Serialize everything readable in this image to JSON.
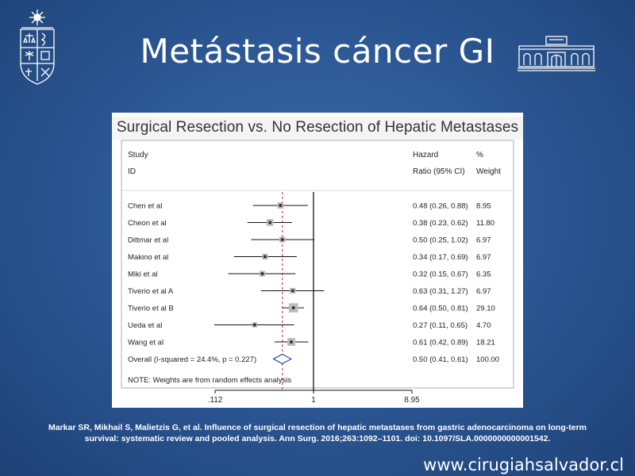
{
  "slide": {
    "title": "Metástasis cáncer GI",
    "citation_line1": "Markar SR, Mikhail S, Malietzis G, et al. Influence of surgical resection of hepatic metastases from gastric adenocarcinoma on long-term",
    "citation_line2": "survival: systematic review and pooled analysis. Ann Surg. 2016;263:1092–1101.   doi: 10.1097/SLA.0000000000001542.",
    "website": "www.cirugiahsalvador.cl"
  },
  "colors": {
    "background": "#2d5996",
    "text": "#ffffff",
    "marker": "#333333",
    "null_line": "#000000",
    "overall_line": "#cc2222",
    "diamond": "#1a3a8a"
  },
  "chart_data": {
    "type": "forest",
    "title": "Surgical Resection vs. No Resection of Hepatic Metastases",
    "header": {
      "study_line1": "Study",
      "study_line2": "ID",
      "hr_line1": "Hazard",
      "hr_line2": "Ratio (95% CI)",
      "w_line1": "%",
      "w_line2": "Weight"
    },
    "scale": "log",
    "x_ticks": [
      {
        "value": 0.112,
        "label": ".112"
      },
      {
        "value": 1,
        "label": "1"
      },
      {
        "value": 8.95,
        "label": "8.95"
      }
    ],
    "null_value": 1,
    "studies": [
      {
        "name": "Chen et al",
        "hr": 0.48,
        "lo": 0.26,
        "hi": 0.88,
        "weight": 8.95,
        "hr_text": "0.48 (0.26, 0.88)",
        "weight_text": "8.95"
      },
      {
        "name": "Cheon et al",
        "hr": 0.38,
        "lo": 0.23,
        "hi": 0.62,
        "weight": 11.8,
        "hr_text": "0.38 (0.23, 0.62)",
        "weight_text": "11.80"
      },
      {
        "name": "Dittmar et al",
        "hr": 0.5,
        "lo": 0.25,
        "hi": 1.02,
        "weight": 6.97,
        "hr_text": "0.50 (0.25, 1.02)",
        "weight_text": "6.97"
      },
      {
        "name": "Makino et al",
        "hr": 0.34,
        "lo": 0.17,
        "hi": 0.69,
        "weight": 6.97,
        "hr_text": "0.34 (0.17, 0.69)",
        "weight_text": "6.97"
      },
      {
        "name": "Miki et al",
        "hr": 0.32,
        "lo": 0.15,
        "hi": 0.67,
        "weight": 6.35,
        "hr_text": "0.32 (0.15, 0.67)",
        "weight_text": "6.35"
      },
      {
        "name": "Tiverio et al A",
        "hr": 0.63,
        "lo": 0.31,
        "hi": 1.27,
        "weight": 6.97,
        "hr_text": "0.63 (0.31, 1.27)",
        "weight_text": "6.97"
      },
      {
        "name": "Tiverio et al B",
        "hr": 0.64,
        "lo": 0.5,
        "hi": 0.81,
        "weight": 29.1,
        "hr_text": "0.64 (0.50, 0.81)",
        "weight_text": "29.10"
      },
      {
        "name": "Ueda et al",
        "hr": 0.27,
        "lo": 0.11,
        "hi": 0.65,
        "weight": 4.7,
        "hr_text": "0.27 (0.11, 0.65)",
        "weight_text": "4.70"
      },
      {
        "name": "Wang et al",
        "hr": 0.61,
        "lo": 0.42,
        "hi": 0.89,
        "weight": 18.21,
        "hr_text": "0.61 (0.42, 0.89)",
        "weight_text": "18.21"
      }
    ],
    "overall": {
      "name": "Overall  (I-squared = 24.4%, p = 0.227)",
      "hr": 0.5,
      "lo": 0.41,
      "hi": 0.61,
      "hr_text": "0.50 (0.41, 0.61)",
      "weight_text": "100.00"
    },
    "note": "NOTE: Weights are from random effects analysis"
  }
}
